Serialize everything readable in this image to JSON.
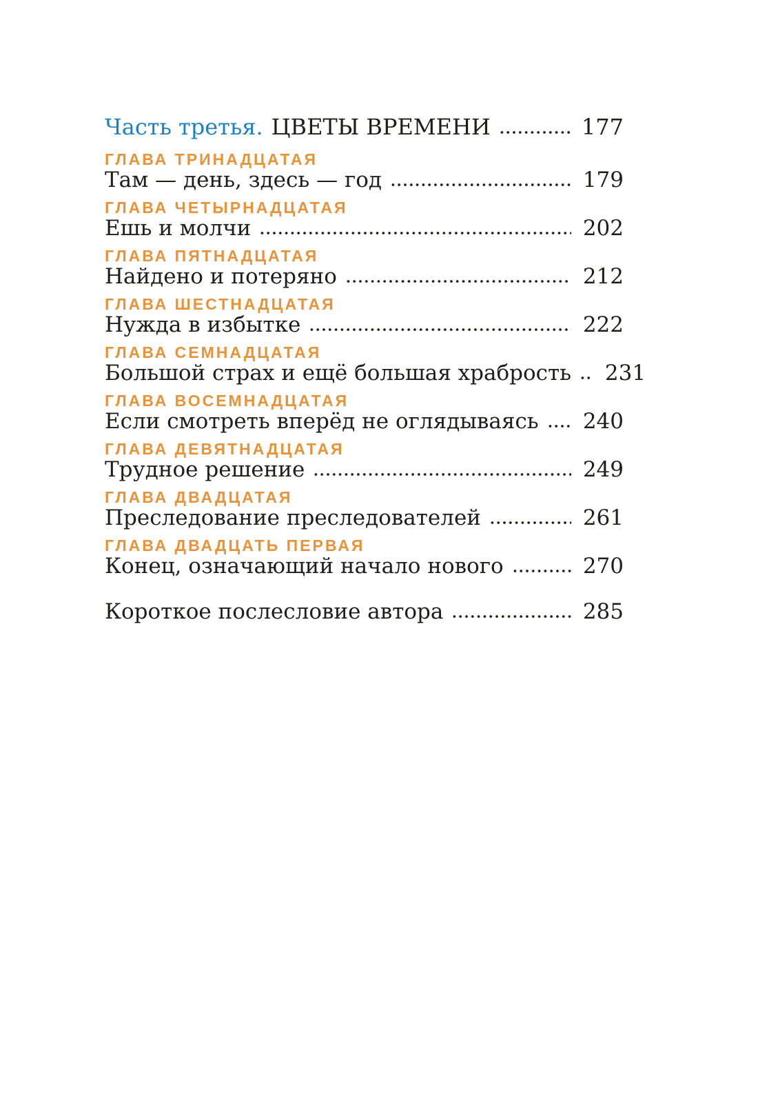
{
  "page": {
    "background": "#ffffff",
    "text_color": "#1d1d1b",
    "accent_blue": "#1981c6",
    "accent_orange": "#eb9237"
  },
  "toc": {
    "part": {
      "label": "Часть третья.",
      "title": "ЦВЕТЫ ВРЕМЕНИ",
      "page": "177"
    },
    "chapters": [
      {
        "heading": "ГЛАВА ТРИНАДЦАТАЯ",
        "title": "Там — день, здесь — год",
        "page": "179"
      },
      {
        "heading": "ГЛАВА ЧЕТЫРНАДЦАТАЯ",
        "title": "Ешь и молчи",
        "page": "202"
      },
      {
        "heading": "ГЛАВА ПЯТНАДЦАТАЯ",
        "title": "Найдено и потеряно",
        "page": "212"
      },
      {
        "heading": "ГЛАВА ШЕСТНАДЦАТАЯ",
        "title": "Нужда в избытке",
        "page": "222"
      },
      {
        "heading": "ГЛАВА СЕМНАДЦАТАЯ",
        "title": "Большой страх и ещё большая храбрость",
        "page": "231"
      },
      {
        "heading": "ГЛАВА ВОСЕМНАДЦАТАЯ",
        "title": "Если смотреть вперёд не оглядываясь",
        "page": "240"
      },
      {
        "heading": "ГЛАВА ДЕВЯТНАДЦАТАЯ",
        "title": "Трудное решение",
        "page": "249"
      },
      {
        "heading": "ГЛАВА ДВАДЦАТАЯ",
        "title": "Преследование преследователей",
        "page": "261"
      },
      {
        "heading": "ГЛАВА ДВАДЦАТЬ ПЕРВАЯ",
        "title": "Конец, означающий начало нового",
        "page": "270"
      }
    ],
    "afterword": {
      "title": "Короткое послесловие автора",
      "page": "285"
    }
  }
}
